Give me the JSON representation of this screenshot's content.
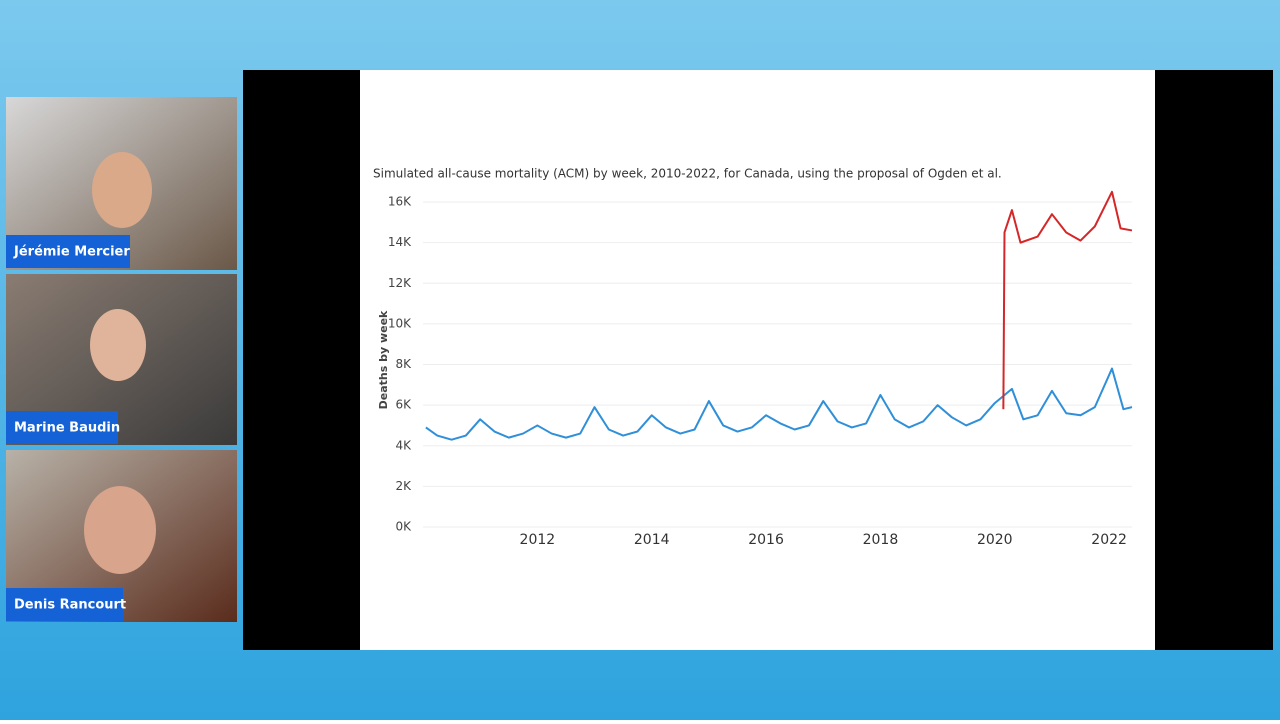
{
  "participants": [
    {
      "name": "Jérémie Mercier"
    },
    {
      "name": "Marine Baudin"
    },
    {
      "name": "Denis Rancourt"
    }
  ],
  "chart_data": {
    "type": "line",
    "title": "Simulated all-cause mortality (ACM) by week, 2010-2022, for Canada, using the proposal of Ogden et al.",
    "y_label": "Deaths by week",
    "xlim": [
      2010,
      2022.4
    ],
    "xticks": [
      2012,
      2014,
      2016,
      2018,
      2020,
      2022
    ],
    "ylim": [
      0,
      16000
    ],
    "yticks": [
      {
        "value": 0,
        "label": "0K"
      },
      {
        "value": 2000,
        "label": "2K"
      },
      {
        "value": 4000,
        "label": "4K"
      },
      {
        "value": 6000,
        "label": "6K"
      },
      {
        "value": 8000,
        "label": "8K"
      },
      {
        "value": 10000,
        "label": "10K"
      },
      {
        "value": 12000,
        "label": "12K"
      },
      {
        "value": 14000,
        "label": "14K"
      },
      {
        "value": 16000,
        "label": "16K"
      }
    ],
    "grid": true,
    "series": [
      {
        "color": "#2f8fd8",
        "x": [
          2010.05,
          2010.25,
          2010.5,
          2010.75,
          2011.0,
          2011.25,
          2011.5,
          2011.75,
          2012.0,
          2012.25,
          2012.5,
          2012.75,
          2013.0,
          2013.25,
          2013.5,
          2013.75,
          2014.0,
          2014.25,
          2014.5,
          2014.75,
          2015.0,
          2015.25,
          2015.5,
          2015.75,
          2016.0,
          2016.25,
          2016.5,
          2016.75,
          2017.0,
          2017.25,
          2017.5,
          2017.75,
          2018.0,
          2018.25,
          2018.5,
          2018.75,
          2019.0,
          2019.25,
          2019.5,
          2019.75,
          2020.0,
          2020.3,
          2020.5,
          2020.75,
          2021.0,
          2021.25,
          2021.5,
          2021.75,
          2022.05,
          2022.25,
          2022.4
        ],
        "values": [
          4900,
          4500,
          4300,
          4500,
          5300,
          4700,
          4400,
          4600,
          5000,
          4600,
          4400,
          4600,
          5900,
          4800,
          4500,
          4700,
          5500,
          4900,
          4600,
          4800,
          6200,
          5000,
          4700,
          4900,
          5500,
          5100,
          4800,
          5000,
          6200,
          5200,
          4900,
          5100,
          6500,
          5300,
          4900,
          5200,
          6000,
          5400,
          5000,
          5300,
          6100,
          6800,
          5300,
          5500,
          6700,
          5600,
          5500,
          5900,
          7800,
          5800,
          5900
        ]
      },
      {
        "color": "#d62728",
        "x": [
          2020.15,
          2020.17,
          2020.3,
          2020.45,
          2020.75,
          2021.0,
          2021.25,
          2021.5,
          2021.75,
          2022.05,
          2022.2,
          2022.4
        ],
        "values": [
          5800,
          14500,
          15600,
          14000,
          14300,
          15400,
          14500,
          14100,
          14800,
          16500,
          14700,
          14600
        ]
      }
    ]
  }
}
